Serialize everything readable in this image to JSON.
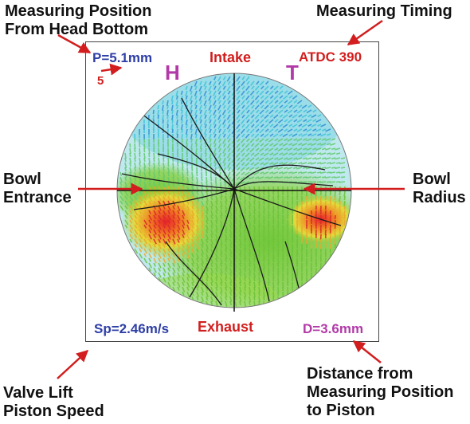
{
  "colors": {
    "annotation_text": "#111111",
    "arrow": "#d21e1e",
    "blue_label": "#2e3fa6",
    "red_label": "#d21e1e",
    "magenta_label": "#b23aa8",
    "flow_low": "#36c3e0",
    "flow_mid": "#7ccf3e",
    "flow_high": "#e8202a"
  },
  "annotations": {
    "measuring_position": [
      "Measuring Position",
      "From Head Bottom"
    ],
    "measuring_timing": "Measuring Timing",
    "bowl_entrance": [
      "Bowl",
      "Entrance"
    ],
    "bowl_radius": [
      "Bowl",
      "Radius"
    ],
    "valve_piston": [
      "Valve Lift",
      "Piston Speed"
    ],
    "distance": [
      "Distance from",
      "Measuring Position",
      "to Piston"
    ]
  },
  "plot": {
    "position_label": "P=5.1mm",
    "scale_label": "5",
    "intake_label": "Intake",
    "timing_label": "ATDC 390",
    "h_marker": "H",
    "t_marker": "T",
    "exhaust_label": "Exhaust",
    "speed_label": "Sp=2.46m/s",
    "distance_label": "D=3.6mm"
  }
}
